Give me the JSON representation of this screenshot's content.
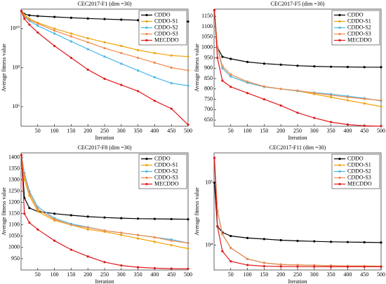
{
  "chart_data": [
    {
      "type": "line",
      "title": "CEC2017-F1 (dim =30)",
      "xlabel": "Iteration",
      "ylabel": "Average fitness value",
      "x": [
        1,
        10,
        25,
        50,
        100,
        150,
        200,
        250,
        300,
        350,
        400,
        450,
        500
      ],
      "xlim": [
        0,
        500
      ],
      "xticks": [
        50,
        100,
        150,
        200,
        250,
        300,
        350,
        400,
        450,
        500
      ],
      "yscale": "log",
      "ylim": [
        100000.0,
        100000000000.0
      ],
      "yticks": [
        {
          "value": 1000000,
          "label": "10⁶"
        },
        {
          "value": 100000000,
          "label": "10⁸"
        },
        {
          "value": 10000000000,
          "label": "10¹⁰"
        }
      ],
      "legend": "upper right",
      "series": [
        {
          "name": "CDDO",
          "color": "#000000",
          "values": [
            79000000000.0,
            56000000000.0,
            48000000000.0,
            44000000000.0,
            40000000000.0,
            36000000000.0,
            33000000000.0,
            31000000000.0,
            29000000000.0,
            27000000000.0,
            26000000000.0,
            24000000000.0,
            23000000000.0
          ]
        },
        {
          "name": "CDDO-S1",
          "color": "#f0a30a",
          "values": [
            79000000000.0,
            50000000000.0,
            32000000000.0,
            20000000000.0,
            10000000000.0,
            5600000000.0,
            3200000000.0,
            2000000000.0,
            1300000000.0,
            790000000.0,
            560000000.0,
            420000000.0,
            370000000.0
          ]
        },
        {
          "name": "CDDO-S2",
          "color": "#4ab8e8",
          "values": [
            79000000000.0,
            40000000000.0,
            25000000000.0,
            14000000000.0,
            5600000000.0,
            2200000000.0,
            890000000.0,
            370000000.0,
            160000000.0,
            71000000.0,
            32000000.0,
            16000000.0,
            12000000.0
          ]
        },
        {
          "name": "CDDO-S3",
          "color": "#f08a4b",
          "values": [
            79000000000.0,
            45000000000.0,
            28000000000.0,
            18000000000.0,
            7900000000.0,
            4000000000.0,
            2000000000.0,
            1000000000.0,
            560000000.0,
            320000000.0,
            180000000.0,
            100000000.0,
            72000000.0
          ]
        },
        {
          "name": "MECDDO",
          "color": "#e0181b",
          "values": [
            79000000000.0,
            32000000000.0,
            16000000000.0,
            6300000000.0,
            1300000000.0,
            320000000.0,
            79000000.0,
            27000000.0,
            13000000.0,
            6300000.0,
            2000000.0,
            790000.0,
            120000.0
          ]
        }
      ]
    },
    {
      "type": "line",
      "title": "CEC2017-F5 (dim =30)",
      "xlabel": "Iteration",
      "ylabel": "Average fitness value",
      "x": [
        1,
        10,
        25,
        50,
        100,
        150,
        200,
        250,
        300,
        350,
        400,
        450,
        500
      ],
      "xlim": [
        0,
        500
      ],
      "xticks": [
        50,
        100,
        150,
        200,
        250,
        300,
        350,
        400,
        450,
        500
      ],
      "ylim": [
        620,
        1185
      ],
      "yticks": [
        650,
        700,
        750,
        800,
        850,
        900,
        950,
        1000,
        1050,
        1100,
        1150
      ],
      "legend": "upper right",
      "series": [
        {
          "name": "CDDO",
          "color": "#000000",
          "values": [
            1180,
            1000,
            955,
            945,
            930,
            922,
            917,
            912,
            909,
            907,
            906,
            905,
            905
          ]
        },
        {
          "name": "CDDO-S1",
          "color": "#f0a30a",
          "values": [
            1180,
            1000,
            900,
            860,
            830,
            810,
            800,
            790,
            775,
            760,
            745,
            730,
            715
          ]
        },
        {
          "name": "CDDO-S2",
          "color": "#4ab8e8",
          "values": [
            1180,
            1000,
            900,
            860,
            830,
            810,
            800,
            790,
            782,
            775,
            765,
            755,
            742
          ]
        },
        {
          "name": "CDDO-S3",
          "color": "#f08a4b",
          "values": [
            1180,
            1000,
            910,
            870,
            835,
            812,
            800,
            792,
            780,
            770,
            760,
            752,
            745
          ]
        },
        {
          "name": "MECDDO",
          "color": "#e0181b",
          "values": [
            1180,
            950,
            840,
            810,
            780,
            750,
            720,
            685,
            660,
            640,
            628,
            622,
            620
          ]
        }
      ]
    },
    {
      "type": "line",
      "title": "CEC2017-F8 (dim =30)",
      "xlabel": "Iteration",
      "ylabel": "Average fitness value",
      "x": [
        1,
        10,
        25,
        50,
        100,
        150,
        200,
        250,
        300,
        350,
        400,
        450,
        500
      ],
      "xlim": [
        0,
        500
      ],
      "xticks": [
        50,
        100,
        150,
        200,
        250,
        300,
        350,
        400,
        450,
        500
      ],
      "ylim": [
        900,
        1420
      ],
      "yticks": [
        950,
        1000,
        1050,
        1100,
        1150,
        1200,
        1250,
        1300,
        1350,
        1400
      ],
      "legend": "upper right",
      "series": [
        {
          "name": "CDDO",
          "color": "#000000",
          "values": [
            1410,
            1220,
            1175,
            1160,
            1150,
            1143,
            1137,
            1133,
            1130,
            1128,
            1127,
            1126,
            1125
          ]
        },
        {
          "name": "CDDO-S1",
          "color": "#f0a30a",
          "values": [
            1410,
            1300,
            1230,
            1160,
            1120,
            1100,
            1080,
            1070,
            1055,
            1040,
            1025,
            1010,
            995
          ]
        },
        {
          "name": "CDDO-S2",
          "color": "#4ab8e8",
          "values": [
            1410,
            1330,
            1250,
            1180,
            1130,
            1105,
            1090,
            1075,
            1065,
            1055,
            1045,
            1035,
            1020
          ]
        },
        {
          "name": "CDDO-S3",
          "color": "#f08a4b",
          "values": [
            1410,
            1320,
            1240,
            1170,
            1125,
            1100,
            1088,
            1075,
            1065,
            1055,
            1045,
            1030,
            1020
          ]
        },
        {
          "name": "MECDDO",
          "color": "#e0181b",
          "values": [
            1410,
            1150,
            1110,
            1080,
            1030,
            990,
            960,
            935,
            920,
            912,
            908,
            906,
            905
          ]
        }
      ]
    },
    {
      "type": "line",
      "title": "CEC2017-F11 (dim =30)",
      "xlabel": "Iteration",
      "ylabel": "Average fitness value",
      "x": [
        1,
        10,
        25,
        50,
        100,
        150,
        200,
        250,
        300,
        350,
        400,
        450,
        500
      ],
      "xlim": [
        0,
        500
      ],
      "xticks": [
        50,
        100,
        150,
        200,
        250,
        300,
        350,
        400,
        450,
        500
      ],
      "yscale": "log",
      "ylim": [
        4000,
        300000
      ],
      "yticks": [
        {
          "value": 10000,
          "label": "10⁴"
        },
        {
          "value": 100000,
          "label": "10⁵"
        }
      ],
      "legend": "upper right",
      "series": [
        {
          "name": "CDDO",
          "color": "#000000",
          "values": [
            100000,
            20000,
            16000,
            14000,
            13000,
            12500,
            12000,
            11700,
            11500,
            11300,
            11200,
            11100,
            11000
          ]
        },
        {
          "name": "CDDO-S1",
          "color": "#f0a30a",
          "values": [
            250000,
            35000,
            15000,
            9000,
            6000,
            5200,
            4900,
            4800,
            4750,
            4700,
            4650,
            4620,
            4600
          ]
        },
        {
          "name": "CDDO-S2",
          "color": "#4ab8e8",
          "values": [
            250000,
            35000,
            15000,
            9000,
            6000,
            5200,
            4900,
            4800,
            4750,
            4700,
            4650,
            4620,
            4600
          ]
        },
        {
          "name": "CDDO-S3",
          "color": "#f08a4b",
          "values": [
            250000,
            35000,
            15000,
            9000,
            6000,
            5200,
            4900,
            4800,
            4750,
            4700,
            4650,
            4620,
            4600
          ]
        },
        {
          "name": "MECDDO",
          "color": "#e0181b",
          "values": [
            250000,
            20000,
            8000,
            5500,
            4800,
            4600,
            4550,
            4530,
            4520,
            4510,
            4500,
            4500,
            4500
          ]
        }
      ]
    }
  ]
}
